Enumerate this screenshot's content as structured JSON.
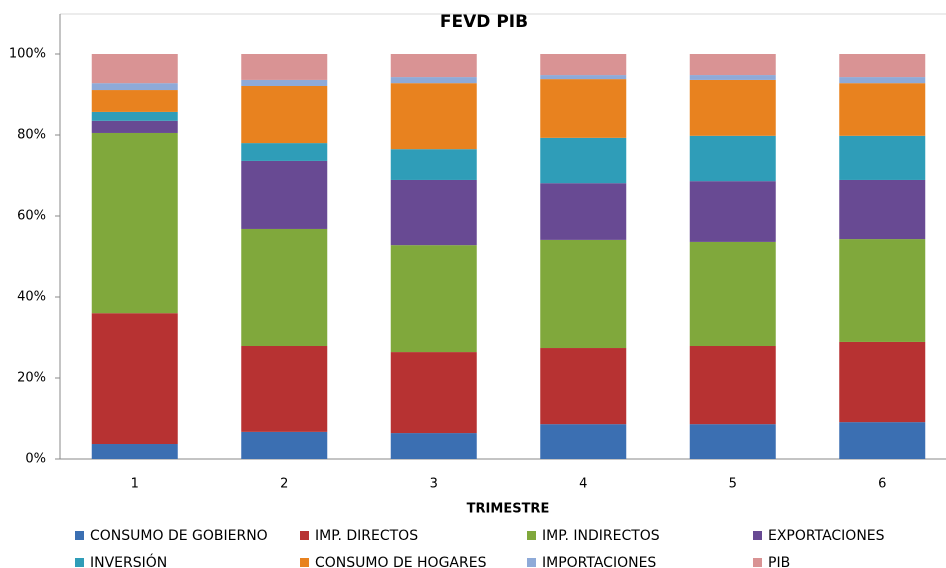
{
  "chart_data": {
    "type": "stacked-bar-percent",
    "title": "FEVD PIB",
    "x_label": "TRIMESTRE",
    "categories": [
      "1",
      "2",
      "3",
      "4",
      "5",
      "6"
    ],
    "ylim": [
      0,
      100
    ],
    "yticks": [
      {
        "value": 0,
        "label": "0%"
      },
      {
        "value": 20,
        "label": "20%"
      },
      {
        "value": 40,
        "label": "40%"
      },
      {
        "value": 60,
        "label": "60%"
      },
      {
        "value": 80,
        "label": "80%"
      },
      {
        "value": 100,
        "label": "100%"
      }
    ],
    "legend": "bottom",
    "series": [
      {
        "name": "CONSUMO DE GOBIERNO",
        "color": "#3b6fb2",
        "values": [
          3.7,
          6.7,
          6.4,
          8.6,
          8.6,
          9.1
        ]
      },
      {
        "name": "IMP. DIRECTOS",
        "color": "#b73232",
        "values": [
          32.3,
          21.2,
          20.0,
          18.8,
          19.3,
          19.8
        ]
      },
      {
        "name": "IMP. INDIRECTOS",
        "color": "#80a83c",
        "values": [
          44.5,
          28.9,
          26.4,
          26.7,
          25.7,
          25.4
        ]
      },
      {
        "name": "EXPORTACIONES",
        "color": "#684a93",
        "values": [
          3.0,
          16.8,
          16.1,
          14.0,
          15.0,
          14.6
        ]
      },
      {
        "name": "INVERSIÓN",
        "color": "#2f9db8",
        "values": [
          2.2,
          4.4,
          7.6,
          11.2,
          11.2,
          10.9
        ]
      },
      {
        "name": "CONSUMO DE HOGARES",
        "color": "#e8821f",
        "values": [
          5.4,
          14.1,
          16.3,
          14.5,
          13.8,
          13.0
        ]
      },
      {
        "name": "IMPORTACIONES",
        "color": "#8eaad8",
        "values": [
          1.7,
          1.5,
          1.5,
          1.0,
          1.2,
          1.5
        ]
      },
      {
        "name": "PIB",
        "color": "#d99394",
        "values": [
          7.2,
          6.4,
          5.7,
          5.2,
          5.2,
          5.7
        ]
      }
    ]
  }
}
